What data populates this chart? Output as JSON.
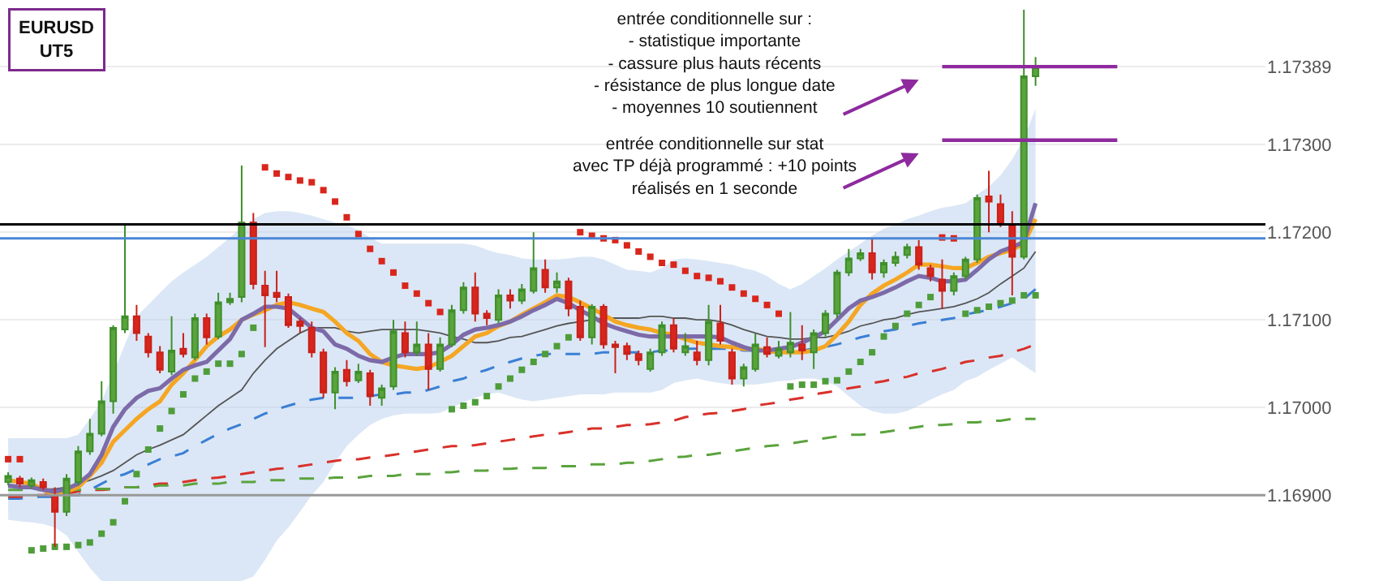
{
  "chart_data": {
    "type": "candlestick",
    "title": "EURUSD",
    "subtitle": "UT5",
    "annotations": [
      "entrée conditionnelle sur :\n- statistique importante\n- cassure plus hauts récents\n- résistance de plus longue date\n- moyennes 10 soutiennent",
      "entrée conditionnelle sur stat\navec TP déjà programmé : +10 points\nréalisés en 1 seconde"
    ],
    "categories": [
      null,
      null,
      null,
      null,
      null,
      null,
      null,
      null,
      null,
      null,
      null,
      null,
      null,
      null,
      null,
      null,
      null,
      null,
      null,
      null,
      null,
      null,
      null,
      null,
      null,
      null,
      null,
      null,
      null,
      null,
      null,
      null,
      null,
      null,
      null,
      null,
      null,
      null,
      null,
      null,
      null,
      null,
      null,
      null,
      null,
      null,
      null,
      null,
      null,
      null,
      null,
      null,
      null,
      null,
      null,
      null,
      null,
      null,
      null,
      null,
      null,
      null,
      null,
      null,
      null,
      null,
      null,
      null,
      null,
      null,
      null,
      null,
      null,
      null,
      null,
      null,
      null,
      null,
      null,
      null,
      null,
      null,
      null,
      null,
      null,
      null,
      null,
      null,
      null
    ],
    "ohlc": [
      [
        1.16915,
        1.16926,
        1.16911,
        1.16922
      ],
      [
        1.16919,
        1.16922,
        1.16909,
        1.16913
      ],
      [
        1.16911,
        1.1692,
        1.16907,
        1.16917
      ],
      [
        1.16915,
        1.16919,
        1.16906,
        1.16909
      ],
      [
        1.169,
        1.16909,
        1.16841,
        1.16881
      ],
      [
        1.16881,
        1.16924,
        1.16876,
        1.16919
      ],
      [
        1.16915,
        1.16956,
        1.16911,
        1.1695
      ],
      [
        1.1695,
        1.16987,
        1.16946,
        1.1697
      ],
      [
        1.1697,
        1.1703,
        1.16967,
        1.17007
      ],
      [
        1.17007,
        1.17094,
        1.16993,
        1.17091
      ],
      [
        1.17089,
        1.17209,
        1.17085,
        1.17104
      ],
      [
        1.17104,
        1.17117,
        1.17076,
        1.17085
      ],
      [
        1.17081,
        1.17085,
        1.17057,
        1.17063
      ],
      [
        1.17063,
        1.1707,
        1.17039,
        1.17043
      ],
      [
        1.17041,
        1.17104,
        1.17037,
        1.17065
      ],
      [
        1.17067,
        1.17085,
        1.17057,
        1.17061
      ],
      [
        1.17057,
        1.17107,
        1.17054,
        1.17102
      ],
      [
        1.17102,
        1.17107,
        1.17072,
        1.1708
      ],
      [
        1.17081,
        1.17131,
        1.17078,
        1.1712
      ],
      [
        1.1712,
        1.17131,
        1.17117,
        1.17124
      ],
      [
        1.17126,
        1.17276,
        1.1712,
        1.17211
      ],
      [
        1.17211,
        1.17222,
        1.17135,
        1.17141
      ],
      [
        1.17139,
        1.17156,
        1.17069,
        1.17128
      ],
      [
        1.17131,
        1.17156,
        1.1712,
        1.17126
      ],
      [
        1.17126,
        1.1713,
        1.17091,
        1.17094
      ],
      [
        1.17098,
        1.17102,
        1.17085,
        1.17093
      ],
      [
        1.17091,
        1.17098,
        1.17057,
        1.17063
      ],
      [
        1.17063,
        1.17067,
        1.17011,
        1.17017
      ],
      [
        1.17017,
        1.17046,
        1.16998,
        1.17041
      ],
      [
        1.17043,
        1.17054,
        1.17024,
        1.1703
      ],
      [
        1.17031,
        1.1705,
        1.17028,
        1.17041
      ],
      [
        1.17039,
        1.17043,
        1.17002,
        1.17013
      ],
      [
        1.17011,
        1.17026,
        1.17002,
        1.17022
      ],
      [
        1.17024,
        1.171,
        1.1702,
        1.17087
      ],
      [
        1.17085,
        1.17098,
        1.17057,
        1.17063
      ],
      [
        1.17063,
        1.17098,
        1.17059,
        1.17072
      ],
      [
        1.17072,
        1.17085,
        1.1702,
        1.17044
      ],
      [
        1.17044,
        1.1708,
        1.17041,
        1.17072
      ],
      [
        1.17072,
        1.17117,
        1.17069,
        1.17111
      ],
      [
        1.17111,
        1.17143,
        1.17107,
        1.17137
      ],
      [
        1.17137,
        1.17154,
        1.17098,
        1.17107
      ],
      [
        1.17107,
        1.17111,
        1.17094,
        1.17102
      ],
      [
        1.171,
        1.17135,
        1.17096,
        1.17128
      ],
      [
        1.17128,
        1.17135,
        1.17113,
        1.17122
      ],
      [
        1.17122,
        1.17141,
        1.17118,
        1.17135
      ],
      [
        1.17133,
        1.172,
        1.1713,
        1.17159
      ],
      [
        1.17157,
        1.17169,
        1.17131,
        1.17137
      ],
      [
        1.17137,
        1.17154,
        1.17131,
        1.17144
      ],
      [
        1.17144,
        1.17148,
        1.17104,
        1.17113
      ],
      [
        1.17115,
        1.17122,
        1.17076,
        1.1708
      ],
      [
        1.1708,
        1.17118,
        1.17072,
        1.17115
      ],
      [
        1.17115,
        1.17118,
        1.17067,
        1.17072
      ],
      [
        1.17072,
        1.17076,
        1.17039,
        1.17069
      ],
      [
        1.1707,
        1.17074,
        1.17054,
        1.17061
      ],
      [
        1.17061,
        1.17065,
        1.17048,
        1.17054
      ],
      [
        1.17044,
        1.17067,
        1.17041,
        1.17063
      ],
      [
        1.17063,
        1.17098,
        1.17059,
        1.17094
      ],
      [
        1.17094,
        1.17102,
        1.17063,
        1.17067
      ],
      [
        1.17063,
        1.17085,
        1.17059,
        1.1707
      ],
      [
        1.17063,
        1.17076,
        1.17048,
        1.17054
      ],
      [
        1.17054,
        1.17117,
        1.17048,
        1.17098
      ],
      [
        1.17096,
        1.17117,
        1.17072,
        1.17076
      ],
      [
        1.17063,
        1.17067,
        1.17026,
        1.17033
      ],
      [
        1.17033,
        1.1705,
        1.17024,
        1.17046
      ],
      [
        1.17044,
        1.17085,
        1.17041,
        1.17072
      ],
      [
        1.17069,
        1.1708,
        1.17057,
        1.17061
      ],
      [
        1.17059,
        1.17076,
        1.17056,
        1.17067
      ],
      [
        1.17063,
        1.17109,
        1.17057,
        1.17074
      ],
      [
        1.17072,
        1.17094,
        1.17054,
        1.17065
      ],
      [
        1.17063,
        1.17089,
        1.17044,
        1.17085
      ],
      [
        1.17085,
        1.17111,
        1.17081,
        1.17107
      ],
      [
        1.17107,
        1.17157,
        1.17102,
        1.17154
      ],
      [
        1.17154,
        1.17181,
        1.1715,
        1.1717
      ],
      [
        1.1717,
        1.17181,
        1.17167,
        1.17176
      ],
      [
        1.17176,
        1.17193,
        1.17146,
        1.17154
      ],
      [
        1.17154,
        1.17169,
        1.17148,
        1.17165
      ],
      [
        1.17165,
        1.17178,
        1.17161,
        1.17172
      ],
      [
        1.17174,
        1.17187,
        1.1717,
        1.17183
      ],
      [
        1.17183,
        1.17191,
        1.17157,
        1.17163
      ],
      [
        1.17159,
        1.17163,
        1.17144,
        1.1715
      ],
      [
        1.17146,
        1.17169,
        1.17113,
        1.17133
      ],
      [
        1.17133,
        1.17154,
        1.17128,
        1.1715
      ],
      [
        1.1715,
        1.17172,
        1.17146,
        1.17169
      ],
      [
        1.17169,
        1.17243,
        1.17165,
        1.17239
      ],
      [
        1.17241,
        1.1727,
        1.172,
        1.17235
      ],
      [
        1.17232,
        1.17243,
        1.17206,
        1.17209
      ],
      [
        1.17207,
        1.17224,
        1.17128,
        1.17172
      ],
      [
        1.17172,
        1.17454,
        1.17169,
        1.17378
      ],
      [
        1.17378,
        1.174,
        1.17367,
        1.17389
      ]
    ],
    "series": [
      {
        "type": "line",
        "color": "#555555",
        "line_style": "solid",
        "values": [
          1.16909,
          1.16909,
          1.16909,
          1.16907,
          1.16907,
          1.16909,
          1.16913,
          1.16917,
          1.16922,
          1.16928,
          1.16937,
          1.16946,
          1.16952,
          1.16957,
          1.16963,
          1.16969,
          1.1698,
          1.16991,
          1.17002,
          1.17011,
          1.1702,
          1.17039,
          1.17054,
          1.17067,
          1.17076,
          1.17085,
          1.17091,
          1.17091,
          1.17091,
          1.17087,
          1.17085,
          1.17087,
          1.17089,
          1.17089,
          1.17089,
          1.17089,
          1.17087,
          1.17085,
          1.17081,
          1.17078,
          1.17074,
          1.17074,
          1.17076,
          1.1708,
          1.17081,
          1.17085,
          1.17089,
          1.17093,
          1.17096,
          1.17098,
          1.171,
          1.17102,
          1.17102,
          1.17102,
          1.17102,
          1.17104,
          1.17104,
          1.17102,
          1.17102,
          1.171,
          1.171,
          1.17098,
          1.17094,
          1.17089,
          1.17085,
          1.17081,
          1.1708,
          1.17078,
          1.17078,
          1.1708,
          1.1708,
          1.17083,
          1.17087,
          1.17093,
          1.17096,
          1.171,
          1.17102,
          1.17106,
          1.17109,
          1.17111,
          1.17113,
          1.17115,
          1.17119,
          1.17124,
          1.17131,
          1.17141,
          1.1715,
          1.17159,
          1.17178
        ],
        "upper": [
          1.16965,
          1.16965,
          1.16965,
          1.16965,
          1.16965,
          1.16965,
          1.16969,
          1.16987,
          1.17007,
          1.17039,
          1.17072,
          1.17104,
          1.17117,
          1.17131,
          1.17144,
          1.17154,
          1.17163,
          1.17172,
          1.17183,
          1.17194,
          1.17206,
          1.17215,
          1.17222,
          1.17224,
          1.17224,
          1.17222,
          1.17219,
          1.17215,
          1.17211,
          1.17209,
          1.17202,
          1.17194,
          1.17187,
          1.17187,
          1.17187,
          1.17187,
          1.17187,
          1.17187,
          1.17187,
          1.17187,
          1.17185,
          1.1718,
          1.17176,
          1.17174,
          1.1717,
          1.17169,
          1.17169,
          1.17169,
          1.1717,
          1.17172,
          1.17172,
          1.17169,
          1.17163,
          1.17157,
          1.17156,
          1.17154,
          1.17159,
          1.17169,
          1.1717,
          1.17169,
          1.17167,
          1.17165,
          1.17163,
          1.17159,
          1.17156,
          1.1715,
          1.17141,
          1.17135,
          1.17141,
          1.1715,
          1.17159,
          1.17169,
          1.17178,
          1.17187,
          1.17196,
          1.17204,
          1.17209,
          1.17215,
          1.17219,
          1.17224,
          1.17228,
          1.1723,
          1.17233,
          1.17243,
          1.17252,
          1.17265,
          1.17283,
          1.17307,
          1.17341
        ],
        "lower": [
          1.16872,
          1.1687,
          1.16869,
          1.16867,
          1.16863,
          1.16854,
          1.16835,
          1.16817,
          1.16802,
          1.16802,
          1.16802,
          1.16802,
          1.16802,
          1.16802,
          1.16802,
          1.16802,
          1.16802,
          1.16802,
          1.16802,
          1.16802,
          1.16802,
          1.16807,
          1.16826,
          1.16848,
          1.16863,
          1.16881,
          1.169,
          1.16915,
          1.16937,
          1.16956,
          1.16969,
          1.1698,
          1.16987,
          1.16991,
          1.16993,
          1.16993,
          1.16993,
          1.16994,
          1.17,
          1.17006,
          1.17011,
          1.17015,
          1.17017,
          1.17013,
          1.17009,
          1.17007,
          1.17009,
          1.17011,
          1.17013,
          1.17015,
          1.17015,
          1.17015,
          1.17017,
          1.17017,
          1.17017,
          1.17017,
          1.1702,
          1.17028,
          1.17031,
          1.17033,
          1.1703,
          1.17028,
          1.17026,
          1.17026,
          1.17026,
          1.17028,
          1.1703,
          1.17031,
          1.17033,
          1.17033,
          1.1703,
          1.17024,
          1.17013,
          1.17002,
          1.16996,
          1.16993,
          1.16993,
          1.16996,
          1.17002,
          1.17009,
          1.17015,
          1.1702,
          1.1703,
          1.17035,
          1.17043,
          1.1705,
          1.17057,
          1.17048,
          1.17039
        ]
      },
      {
        "type": "line",
        "color": "#3a7fd5",
        "line_style": "dashed",
        "values": [
          1.16896,
          1.16896,
          1.16898,
          1.16898,
          1.16898,
          1.169,
          1.169,
          1.16906,
          1.16913,
          1.1692,
          1.16924,
          1.1693,
          1.16935,
          1.16941,
          1.16944,
          1.16948,
          1.16956,
          1.16963,
          1.1697,
          1.16976,
          1.16981,
          1.16987,
          1.16993,
          1.16998,
          1.17002,
          1.17006,
          1.17009,
          1.17011,
          1.17011,
          1.17011,
          1.17011,
          1.17013,
          1.17015,
          1.17015,
          1.17017,
          1.17017,
          1.1702,
          1.17024,
          1.1703,
          1.17033,
          1.17039,
          1.17043,
          1.17048,
          1.17052,
          1.17056,
          1.17059,
          1.17061,
          1.17061,
          1.17061,
          1.17061,
          1.17061,
          1.17063,
          1.17063,
          1.17063,
          1.17063,
          1.17063,
          1.17065,
          1.17065,
          1.17067,
          1.17067,
          1.17067,
          1.17067,
          1.17067,
          1.17065,
          1.17065,
          1.17063,
          1.17063,
          1.17065,
          1.17065,
          1.17067,
          1.17069,
          1.17072,
          1.17076,
          1.1708,
          1.17083,
          1.17087,
          1.17089,
          1.17093,
          1.17096,
          1.17098,
          1.171,
          1.17102,
          1.17106,
          1.17109,
          1.17111,
          1.17115,
          1.17119,
          1.17124,
          1.17135
        ]
      },
      {
        "type": "line",
        "color": "#d9302a",
        "line_style": "dashed",
        "values": [
          1.16898,
          1.16898,
          1.169,
          1.169,
          1.16902,
          1.16902,
          1.16904,
          1.16906,
          1.16906,
          1.16907,
          1.16909,
          1.16909,
          1.16911,
          1.16913,
          1.16913,
          1.16915,
          1.16917,
          1.16919,
          1.1692,
          1.16922,
          1.16924,
          1.16926,
          1.16928,
          1.1693,
          1.16931,
          1.16933,
          1.16935,
          1.16937,
          1.16939,
          1.16941,
          1.16941,
          1.16943,
          1.16944,
          1.16946,
          1.16948,
          1.1695,
          1.16952,
          1.16954,
          1.16956,
          1.16956,
          1.16957,
          1.16959,
          1.16961,
          1.16963,
          1.16965,
          1.16967,
          1.16969,
          1.1697,
          1.16972,
          1.16974,
          1.16976,
          1.16976,
          1.16978,
          1.1698,
          1.1698,
          1.16981,
          1.16983,
          1.16985,
          1.16989,
          1.16991,
          1.16993,
          1.16994,
          1.16996,
          1.16998,
          1.17002,
          1.17004,
          1.17006,
          1.17009,
          1.17011,
          1.17015,
          1.17017,
          1.17019,
          1.17022,
          1.17024,
          1.17028,
          1.1703,
          1.17033,
          1.17035,
          1.17039,
          1.17041,
          1.17044,
          1.17048,
          1.17052,
          1.17054,
          1.17057,
          1.17059,
          1.17063,
          1.17067,
          1.17072
        ]
      },
      {
        "type": "line",
        "color": "#5aa33d",
        "line_style": "dashed",
        "values": [
          1.16906,
          1.16906,
          1.16906,
          1.16906,
          1.16906,
          1.16906,
          1.16906,
          1.16907,
          1.16907,
          1.16907,
          1.16909,
          1.16909,
          1.16909,
          1.16911,
          1.16911,
          1.16911,
          1.16913,
          1.16913,
          1.16913,
          1.16915,
          1.16915,
          1.16915,
          1.16917,
          1.16917,
          1.16917,
          1.16919,
          1.16919,
          1.16919,
          1.1692,
          1.1692,
          1.1692,
          1.16922,
          1.16922,
          1.16922,
          1.16924,
          1.16924,
          1.16924,
          1.16926,
          1.16926,
          1.16928,
          1.16928,
          1.16928,
          1.1693,
          1.1693,
          1.16931,
          1.16931,
          1.16931,
          1.16933,
          1.16933,
          1.16933,
          1.16935,
          1.16935,
          1.16935,
          1.16937,
          1.16937,
          1.16939,
          1.16941,
          1.16943,
          1.16944,
          1.16946,
          1.16946,
          1.16948,
          1.1695,
          1.16952,
          1.16954,
          1.16956,
          1.16957,
          1.16959,
          1.16961,
          1.16963,
          1.16965,
          1.16967,
          1.16969,
          1.16969,
          1.1697,
          1.16972,
          1.16974,
          1.16976,
          1.16978,
          1.1698,
          1.1698,
          1.16981,
          1.16983,
          1.16983,
          1.16985,
          1.16985,
          1.16987,
          1.16987,
          1.16987
        ]
      },
      {
        "type": "line",
        "color": "#f5a623",
        "line_style": "solid",
        "values": [
          1.16917,
          1.16915,
          1.16913,
          1.16906,
          1.169,
          1.16904,
          1.16909,
          1.16922,
          1.16937,
          1.16961,
          1.16974,
          1.16987,
          1.16998,
          1.17007,
          1.17026,
          1.17039,
          1.17054,
          1.1707,
          1.17081,
          1.17089,
          1.171,
          1.17106,
          1.17111,
          1.17117,
          1.1712,
          1.17117,
          1.17113,
          1.17109,
          1.17098,
          1.17085,
          1.17076,
          1.17061,
          1.17052,
          1.17048,
          1.17046,
          1.17044,
          1.17046,
          1.17052,
          1.17059,
          1.1707,
          1.17081,
          1.17085,
          1.17093,
          1.17098,
          1.17106,
          1.17113,
          1.1712,
          1.17128,
          1.17126,
          1.1712,
          1.17113,
          1.17106,
          1.17098,
          1.17094,
          1.17091,
          1.17089,
          1.17085,
          1.17083,
          1.17078,
          1.17074,
          1.17072,
          1.1707,
          1.17069,
          1.17067,
          1.17067,
          1.17065,
          1.17063,
          1.17063,
          1.17063,
          1.17065,
          1.1707,
          1.17083,
          1.17098,
          1.17117,
          1.1713,
          1.17139,
          1.17146,
          1.17154,
          1.17163,
          1.17163,
          1.17161,
          1.17159,
          1.17159,
          1.17165,
          1.17172,
          1.17176,
          1.1718,
          1.17187,
          1.17215
        ]
      },
      {
        "type": "line",
        "color": "#7d6aa8",
        "line_style": "solid",
        "values": [
          1.16911,
          1.16909,
          1.16909,
          1.16906,
          1.16904,
          1.16907,
          1.16913,
          1.16924,
          1.16946,
          1.16978,
          1.16998,
          1.17011,
          1.17019,
          1.17022,
          1.17033,
          1.17043,
          1.17048,
          1.17052,
          1.17065,
          1.17078,
          1.171,
          1.17107,
          1.17115,
          1.17115,
          1.17113,
          1.17102,
          1.17091,
          1.17087,
          1.17072,
          1.17067,
          1.17059,
          1.17054,
          1.17052,
          1.17057,
          1.17061,
          1.17061,
          1.17061,
          1.17063,
          1.17072,
          1.17083,
          1.17089,
          1.17091,
          1.17094,
          1.17098,
          1.17104,
          1.17111,
          1.17117,
          1.17124,
          1.17119,
          1.17111,
          1.17104,
          1.17096,
          1.17091,
          1.17087,
          1.17083,
          1.17081,
          1.17081,
          1.17081,
          1.17081,
          1.17081,
          1.17081,
          1.1708,
          1.17074,
          1.17069,
          1.17065,
          1.17065,
          1.17067,
          1.17069,
          1.17074,
          1.1708,
          1.17087,
          1.171,
          1.17113,
          1.17122,
          1.17126,
          1.17131,
          1.17137,
          1.17144,
          1.1715,
          1.17148,
          1.17144,
          1.17144,
          1.17146,
          1.17157,
          1.17169,
          1.17178,
          1.17183,
          1.17189,
          1.17233
        ]
      },
      {
        "type": "scatter",
        "color": "#d9261c",
        "marker": "square",
        "values": [
          1.16941,
          1.16941,
          null,
          null,
          null,
          null,
          null,
          null,
          null,
          null,
          null,
          null,
          null,
          null,
          null,
          null,
          null,
          null,
          null,
          null,
          null,
          null,
          1.17274,
          1.17267,
          1.17263,
          1.17259,
          1.17257,
          1.17248,
          1.17235,
          1.17217,
          1.17198,
          1.17181,
          1.17167,
          1.17154,
          1.17139,
          1.1713,
          1.17119,
          1.17109,
          null,
          null,
          null,
          null,
          null,
          null,
          null,
          null,
          null,
          null,
          null,
          1.172,
          1.17196,
          1.17193,
          1.17191,
          1.17185,
          1.17178,
          1.17172,
          1.17165,
          1.17163,
          1.17156,
          1.1715,
          1.17148,
          1.17144,
          1.17137,
          1.1713,
          1.17124,
          1.17117,
          1.17107,
          null,
          null,
          null,
          null,
          null,
          null,
          null,
          null,
          null,
          null,
          null,
          null,
          null,
          1.17194,
          1.17193,
          null,
          null,
          null,
          null,
          null,
          null,
          null
        ]
      },
      {
        "type": "scatter",
        "color": "#4f9d3a",
        "marker": "square",
        "values": [
          null,
          null,
          1.16837,
          1.16839,
          1.16841,
          1.16841,
          1.16843,
          1.16846,
          1.16856,
          1.16869,
          1.16893,
          1.16924,
          1.16952,
          1.16976,
          1.16996,
          1.17015,
          1.17033,
          1.17041,
          1.1705,
          1.1705,
          1.17061,
          1.17091,
          null,
          null,
          null,
          null,
          null,
          null,
          null,
          null,
          null,
          null,
          null,
          null,
          null,
          null,
          null,
          null,
          1.16998,
          1.17002,
          1.17006,
          1.17013,
          1.17024,
          1.17033,
          1.17043,
          1.17052,
          1.17061,
          1.1707,
          1.1708,
          null,
          null,
          null,
          null,
          null,
          null,
          null,
          null,
          null,
          null,
          null,
          null,
          null,
          null,
          null,
          null,
          null,
          null,
          1.17024,
          1.17026,
          1.17026,
          1.1703,
          1.17031,
          1.17041,
          1.17052,
          1.17063,
          1.17081,
          1.17093,
          1.17107,
          1.17117,
          1.17126,
          null,
          null,
          1.17107,
          1.17111,
          1.17115,
          1.17119,
          1.17122,
          1.17128,
          1.17128
        ]
      }
    ],
    "ref_lines": [
      {
        "axis": "y",
        "value": 1.169,
        "color": "#999999"
      },
      {
        "axis": "y",
        "value": 1.17193,
        "color": "#4a86d6"
      },
      {
        "axis": "y",
        "value": 1.17209,
        "color": "#000000"
      },
      {
        "axis": "y",
        "value": 1.17389,
        "color": "#8e2a9e"
      },
      {
        "axis": "y",
        "value": 1.17305,
        "color": "#8e2a9e"
      }
    ],
    "ylim": [
      1.16802,
      1.17465
    ],
    "yticks": [
      {
        "value": 1.169,
        "label": "1.16900"
      },
      {
        "value": 1.17,
        "label": "1.17000"
      },
      {
        "value": 1.171,
        "label": "1.17100"
      },
      {
        "value": 1.172,
        "label": "1.17200"
      },
      {
        "value": 1.173,
        "label": "1.17300"
      },
      {
        "value": 1.17389,
        "label": "1.17389"
      }
    ],
    "grid": "y",
    "tick_labels": "y"
  }
}
